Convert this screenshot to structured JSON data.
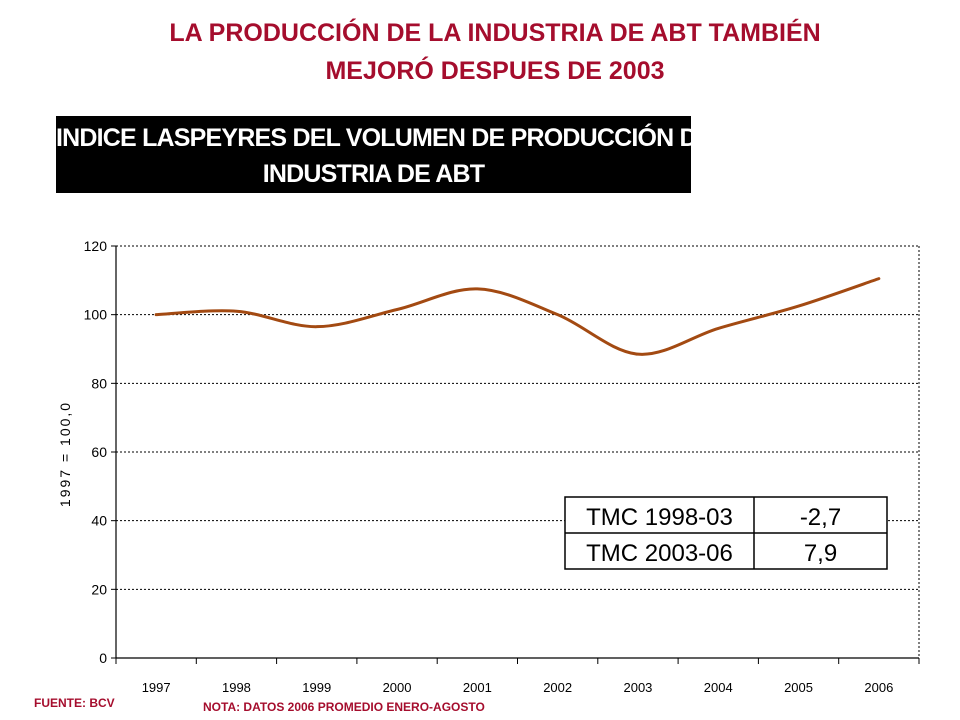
{
  "header": {
    "title_line1": "LA PRODUCCIÓN DE LA INDUSTRIA DE ABT TAMBIÉN",
    "title_line2": "MEJORÓ DESPUES DE 2003"
  },
  "chart_data": {
    "type": "line",
    "title_line1": "INDICE LASPEYRES DEL VOLUMEN DE PRODUCCIÓN DE LA",
    "title_line2": "INDUSTRIA DE ABT",
    "ylabel": "1997 = 100,0",
    "xlabel": "",
    "ylim": [
      0,
      120
    ],
    "yticks": [
      "0",
      "20",
      "40",
      "60",
      "80",
      "100",
      "120"
    ],
    "categories": [
      "1997",
      "1998",
      "1999",
      "2000",
      "2001",
      "2002",
      "2003",
      "2004",
      "2005",
      "2006"
    ],
    "series": [
      {
        "values": [
          100.0,
          101.0,
          96.5,
          101.5,
          107.5,
          100.0,
          88.5,
          96.0,
          102.5,
          110.5
        ],
        "color": "#a34a12"
      }
    ],
    "grid": true,
    "table": [
      {
        "label": "TMC 1998-03",
        "value": "-2,7"
      },
      {
        "label": "TMC 2003-06",
        "value": "7,9"
      }
    ]
  },
  "footer": {
    "source": "FUENTE: BCV",
    "note": "NOTA: DATOS 2006 PROMEDIO ENERO-AGOSTO"
  }
}
